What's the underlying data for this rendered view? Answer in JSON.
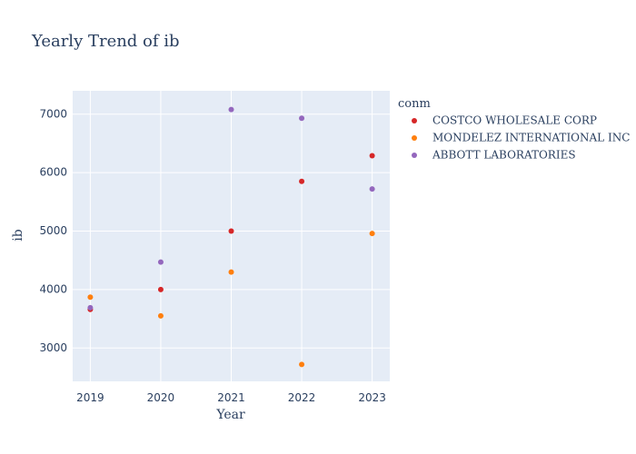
{
  "chart_data": {
    "type": "scatter",
    "title": "Yearly Trend of ib",
    "xlabel": "Year",
    "ylabel": "ib",
    "x": [
      2019,
      2020,
      2021,
      2022,
      2023
    ],
    "xlim": [
      2018.75,
      2023.25
    ],
    "ylim": [
      2430,
      7400
    ],
    "yticks": [
      3000,
      4000,
      5000,
      6000,
      7000
    ],
    "grid": true,
    "legend_title": "conm",
    "legend_position": "right",
    "series": [
      {
        "name": "COSTCO WHOLESALE CORP",
        "color": "#d62728",
        "values": [
          3660,
          4000,
          5000,
          5850,
          6290
        ]
      },
      {
        "name": "MONDELEZ INTERNATIONAL INC",
        "color": "#ff7f0e",
        "values": [
          3870,
          3550,
          4300,
          2720,
          4960
        ]
      },
      {
        "name": "ABBOTT LABORATORIES",
        "color": "#9467bd",
        "values": [
          3690,
          4470,
          7080,
          6930,
          5720
        ]
      }
    ]
  }
}
